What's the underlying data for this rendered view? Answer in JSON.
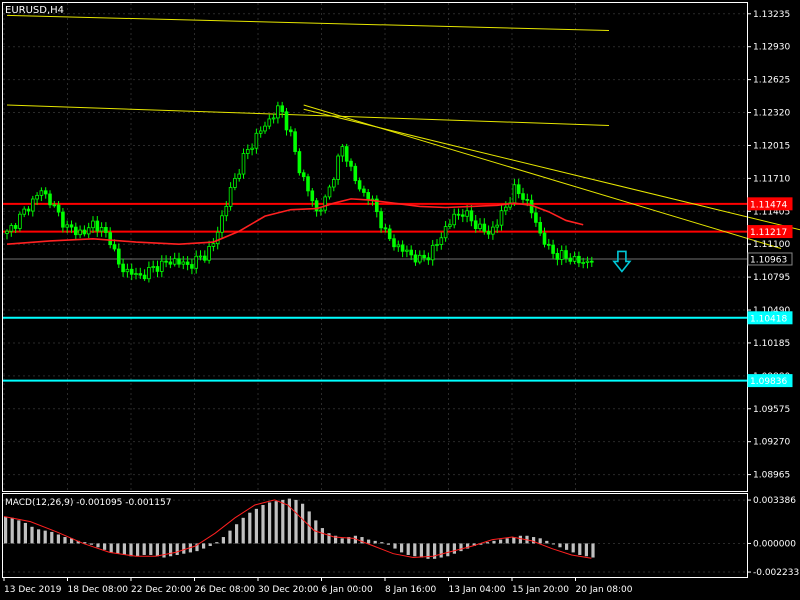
{
  "symbol_label": "EURUSD,H4",
  "indicator_label": "MACD(12,26,9) -0.001095 -0.001157",
  "chart_data": [
    {
      "type": "candlestick",
      "ylim": [
        1.08813,
        1.13335
      ],
      "yticks": [
        "1.13235",
        "1.12930",
        "1.12625",
        "1.12320",
        "1.12015",
        "1.11710",
        "1.11405",
        "1.11100",
        "1.10795",
        "1.10490",
        "1.10185",
        "1.09880",
        "1.09575",
        "1.09270",
        "1.08965"
      ],
      "xticks": [
        "13 Dec 2019",
        "18 Dec 08:00",
        "22 Dec 20:00",
        "26 Dec 08:00",
        "30 Dec 20:00",
        "6 Jan 00:00",
        "8 Jan 16:00",
        "13 Jan 04:00",
        "15 Jan 20:00",
        "20 Jan 08:00"
      ],
      "grid": true,
      "bull_color": "#00ff00",
      "bear_color": "#00ff00",
      "close_path": [
        [
          0,
          1.112
        ],
        [
          4,
          1.114
        ],
        [
          8,
          1.116
        ],
        [
          10,
          1.115
        ],
        [
          14,
          1.1125
        ],
        [
          18,
          1.112
        ],
        [
          20,
          1.113
        ],
        [
          24,
          1.1115
        ],
        [
          26,
          1.109
        ],
        [
          28,
          1.1085
        ],
        [
          31,
          1.108
        ],
        [
          35,
          1.109
        ],
        [
          39,
          1.1095
        ],
        [
          42,
          1.109
        ],
        [
          46,
          1.11
        ],
        [
          48,
          1.111
        ],
        [
          52,
          1.116
        ],
        [
          55,
          1.119
        ],
        [
          58,
          1.121
        ],
        [
          61,
          1.1225
        ],
        [
          63,
          1.1235
        ],
        [
          64,
          1.1232
        ],
        [
          66,
          1.121
        ],
        [
          68,
          1.118
        ],
        [
          70,
          1.116
        ],
        [
          72,
          1.114
        ],
        [
          74,
          1.115
        ],
        [
          76,
          1.1175
        ],
        [
          78,
          1.12
        ],
        [
          80,
          1.118
        ],
        [
          82,
          1.116
        ],
        [
          84,
          1.1155
        ],
        [
          86,
          1.114
        ],
        [
          88,
          1.112
        ],
        [
          90,
          1.111
        ],
        [
          92,
          1.1105
        ],
        [
          94,
          1.11
        ],
        [
          96,
          1.1095
        ],
        [
          98,
          1.11
        ],
        [
          100,
          1.111
        ],
        [
          102,
          1.1125
        ],
        [
          104,
          1.1135
        ],
        [
          106,
          1.114
        ],
        [
          108,
          1.1132
        ],
        [
          110,
          1.1125
        ],
        [
          112,
          1.112
        ],
        [
          114,
          1.113
        ],
        [
          116,
          1.1145
        ],
        [
          118,
          1.116
        ],
        [
          120,
          1.1155
        ],
        [
          122,
          1.114
        ],
        [
          124,
          1.112
        ],
        [
          126,
          1.1105
        ],
        [
          128,
          1.11
        ],
        [
          130,
          1.1098
        ],
        [
          132,
          1.1096
        ],
        [
          134,
          1.1092
        ],
        [
          136,
          1.1097
        ]
      ],
      "ma_line": {
        "color": "#ff2020",
        "points": [
          [
            0,
            1.111
          ],
          [
            10,
            1.1113
          ],
          [
            20,
            1.1115
          ],
          [
            30,
            1.1112
          ],
          [
            40,
            1.111
          ],
          [
            48,
            1.1112
          ],
          [
            54,
            1.1122
          ],
          [
            60,
            1.1136
          ],
          [
            66,
            1.1142
          ],
          [
            72,
            1.1143
          ],
          [
            76,
            1.1148
          ],
          [
            80,
            1.1152
          ],
          [
            84,
            1.1151
          ],
          [
            90,
            1.1148
          ],
          [
            96,
            1.1145
          ],
          [
            102,
            1.1144
          ],
          [
            108,
            1.1145
          ],
          [
            114,
            1.1146
          ],
          [
            118,
            1.1148
          ],
          [
            122,
            1.1146
          ],
          [
            126,
            1.114
          ],
          [
            130,
            1.1132
          ],
          [
            134,
            1.1128
          ]
        ]
      },
      "horizontal_levels": [
        {
          "price": 1.11474,
          "label": "1.11474",
          "color": "#ff0000"
        },
        {
          "price": 1.11217,
          "label": "1.11217",
          "color": "#ff0000"
        },
        {
          "price": 1.10963,
          "label": "1.10963",
          "color": "#707070",
          "style": "thin"
        },
        {
          "price": 1.10418,
          "label": "1.10418",
          "color": "#00ffff"
        },
        {
          "price": 1.09836,
          "label": "1.09836",
          "color": "#00ffff"
        }
      ],
      "trend_lines": {
        "color": "#e6e600",
        "lines": [
          {
            "from": [
              0,
              1.1322
            ],
            "to": [
              140,
              1.1308
            ]
          },
          {
            "from": [
              0,
              1.1239
            ],
            "to": [
              140,
              1.122
            ]
          },
          {
            "from": [
              69,
              1.1239
            ],
            "to": [
              180,
              1.1106
            ]
          },
          {
            "from": [
              69,
              1.1235
            ],
            "to": [
              190,
              1.1118
            ]
          }
        ]
      },
      "signal_arrow": {
        "direction": "down",
        "color": "#00c8d8"
      }
    },
    {
      "type": "bar",
      "name": "MACD",
      "ylim": [
        -0.00262,
        0.00386
      ],
      "yticks": [
        "0.003386",
        "0.000000",
        "-0.002233"
      ],
      "histogram_color": "#c0c0c0",
      "signal_color": "#ff2020",
      "histogram": [
        0.0021,
        0.002,
        0.0018,
        0.0016,
        0.0013,
        0.0011,
        0.001,
        0.0009,
        0.0007,
        0.0005,
        0.0004,
        0.0002,
        0.0001,
        -0.0001,
        -0.0003,
        -0.0005,
        -0.0007,
        -0.0008,
        -0.0009,
        -0.001,
        -0.001,
        -0.0009,
        -0.0009,
        -0.001,
        -0.0011,
        -0.001,
        -0.0009,
        -0.0008,
        -0.0007,
        -0.0006,
        -0.0004,
        -0.0002,
        0.0001,
        0.0005,
        0.001,
        0.0015,
        0.002,
        0.0024,
        0.0027,
        0.003,
        0.0032,
        0.0033,
        0.0034,
        0.0035,
        0.0034,
        0.0031,
        0.0025,
        0.0018,
        0.0012,
        0.0008,
        0.0006,
        0.0004,
        0.0005,
        0.0006,
        0.0005,
        0.0003,
        0.0002,
        0.0001,
        -0.0001,
        -0.0004,
        -0.0007,
        -0.0009,
        -0.001,
        -0.0011,
        -0.0012,
        -0.0012,
        -0.0011,
        -0.001,
        -0.0008,
        -0.0006,
        -0.0004,
        -0.0002,
        -0.0001,
        0.0001,
        0.0002,
        0.0003,
        0.0004,
        0.0005,
        0.0006,
        0.0006,
        0.0005,
        0.0004,
        0.0002,
        0.0,
        -0.0003,
        -0.0005,
        -0.0007,
        -0.0009,
        -0.001,
        -0.0011
      ],
      "signal": [
        [
          0,
          0.0021
        ],
        [
          8,
          0.0017
        ],
        [
          16,
          0.0009
        ],
        [
          24,
          0.0
        ],
        [
          32,
          -0.0007
        ],
        [
          40,
          -0.001
        ],
        [
          46,
          -0.001
        ],
        [
          52,
          -0.0007
        ],
        [
          58,
          -0.0002
        ],
        [
          64,
          0.0008
        ],
        [
          70,
          0.002
        ],
        [
          76,
          0.003
        ],
        [
          82,
          0.0034
        ],
        [
          86,
          0.003
        ],
        [
          90,
          0.002
        ],
        [
          94,
          0.001
        ],
        [
          100,
          0.0005
        ],
        [
          106,
          0.0004
        ],
        [
          112,
          -0.0002
        ],
        [
          118,
          -0.0008
        ],
        [
          124,
          -0.0011
        ],
        [
          130,
          -0.001
        ],
        [
          136,
          -0.0006
        ],
        [
          142,
          -0.0002
        ],
        [
          148,
          0.0003
        ],
        [
          154,
          0.0005
        ],
        [
          160,
          0.0002
        ],
        [
          166,
          -0.0004
        ],
        [
          172,
          -0.0009
        ],
        [
          178,
          -0.00116
        ]
      ]
    }
  ]
}
